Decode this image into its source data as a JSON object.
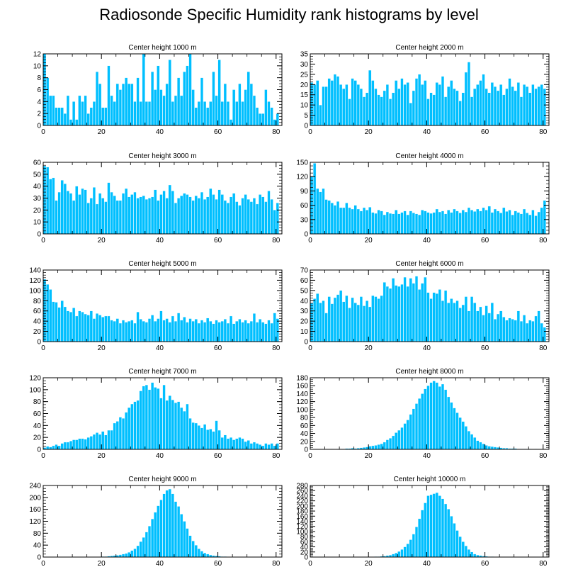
{
  "title": "Radiosonde Specific Humidity rank histograms by level",
  "colors": {
    "bar": "#00BFFF",
    "bar_edge": "#ffffff",
    "axis": "#000000"
  },
  "chart_data": [
    {
      "type": "bar",
      "title": "Center height 1000 m",
      "xlim": [
        0,
        82
      ],
      "ylim": [
        0,
        12
      ],
      "yticks": [
        0,
        2,
        4,
        6,
        8,
        10,
        12
      ],
      "xticks": [
        0,
        20,
        40,
        60,
        80
      ],
      "values": [
        12,
        8,
        5,
        5,
        3,
        3,
        3,
        2,
        5,
        1,
        4,
        1,
        5,
        4,
        5,
        2,
        3,
        4,
        9,
        7,
        3,
        3,
        10,
        5,
        4,
        7,
        6,
        7,
        8,
        7,
        7,
        4,
        8,
        4,
        12,
        4,
        4,
        9,
        6,
        10,
        6,
        5,
        7,
        11,
        4,
        5,
        8,
        5,
        9,
        10,
        12,
        6,
        3,
        4,
        8,
        4,
        3,
        4,
        9,
        5,
        11,
        4,
        7,
        4,
        1,
        6,
        4,
        7,
        4,
        6,
        9,
        7,
        5,
        3,
        2,
        2,
        6,
        4,
        3,
        1,
        2
      ],
      "xlabel": "",
      "ylabel": ""
    },
    {
      "type": "bar",
      "title": "Center height 2000 m",
      "xlim": [
        0,
        82
      ],
      "ylim": [
        0,
        35
      ],
      "yticks": [
        0,
        5,
        10,
        15,
        20,
        25,
        30,
        35
      ],
      "xticks": [
        0,
        20,
        40,
        60,
        80
      ],
      "values": [
        21,
        20,
        22,
        10,
        19,
        19,
        23,
        22,
        25,
        24,
        20,
        18,
        20,
        13,
        23,
        22,
        20,
        18,
        14,
        16,
        27,
        22,
        18,
        15,
        14,
        17,
        20,
        13,
        16,
        22,
        18,
        23,
        20,
        21,
        11,
        17,
        23,
        25,
        20,
        22,
        13,
        16,
        15,
        21,
        20,
        24,
        14,
        19,
        22,
        18,
        17,
        12,
        16,
        26,
        31,
        14,
        18,
        20,
        22,
        25,
        18,
        16,
        21,
        19,
        17,
        20,
        15,
        18,
        23,
        19,
        17,
        21,
        14,
        20,
        19,
        16,
        20,
        18,
        19,
        20,
        18
      ],
      "xlabel": "",
      "ylabel": ""
    },
    {
      "type": "bar",
      "title": "Center height 3000 m",
      "xlim": [
        0,
        82
      ],
      "ylim": [
        0,
        60
      ],
      "yticks": [
        0,
        10,
        20,
        30,
        40,
        50,
        60
      ],
      "xticks": [
        0,
        20,
        40,
        60,
        80
      ],
      "values": [
        57,
        56,
        46,
        47,
        28,
        35,
        45,
        42,
        36,
        34,
        28,
        40,
        33,
        38,
        37,
        26,
        30,
        39,
        25,
        34,
        30,
        27,
        43,
        35,
        32,
        28,
        28,
        34,
        38,
        31,
        33,
        35,
        30,
        31,
        32,
        29,
        30,
        31,
        37,
        28,
        33,
        36,
        30,
        41,
        36,
        26,
        30,
        32,
        34,
        33,
        31,
        28,
        32,
        30,
        35,
        29,
        31,
        38,
        33,
        29,
        37,
        33,
        28,
        26,
        31,
        34,
        27,
        24,
        30,
        33,
        29,
        27,
        30,
        25,
        33,
        31,
        27,
        36,
        29,
        20,
        26
      ],
      "xlabel": "",
      "ylabel": ""
    },
    {
      "type": "bar",
      "title": "Center height 4000 m",
      "xlim": [
        0,
        82
      ],
      "ylim": [
        0,
        150
      ],
      "yticks": [
        0,
        30,
        60,
        90,
        120,
        150
      ],
      "xticks": [
        0,
        20,
        40,
        60,
        80
      ],
      "values": [
        120,
        148,
        95,
        88,
        95,
        72,
        70,
        65,
        60,
        68,
        55,
        55,
        65,
        55,
        52,
        60,
        52,
        48,
        55,
        50,
        56,
        45,
        43,
        50,
        48,
        40,
        46,
        43,
        42,
        50,
        42,
        45,
        48,
        40,
        48,
        44,
        42,
        40,
        50,
        48,
        45,
        43,
        45,
        52,
        46,
        48,
        42,
        50,
        45,
        52,
        48,
        44,
        50,
        46,
        55,
        50,
        47,
        52,
        48,
        55,
        50,
        58,
        45,
        52,
        48,
        44,
        55,
        47,
        50,
        40,
        48,
        45,
        42,
        52,
        44,
        40,
        50,
        38,
        46,
        55,
        70
      ],
      "xlabel": "",
      "ylabel": ""
    },
    {
      "type": "bar",
      "title": "Center height 5000 m",
      "xlim": [
        0,
        82
      ],
      "ylim": [
        0,
        140
      ],
      "yticks": [
        0,
        20,
        40,
        60,
        80,
        100,
        120,
        140
      ],
      "xticks": [
        0,
        20,
        40,
        60,
        80
      ],
      "values": [
        122,
        112,
        102,
        78,
        77,
        67,
        80,
        68,
        60,
        58,
        66,
        50,
        60,
        58,
        54,
        52,
        60,
        45,
        55,
        52,
        48,
        50,
        50,
        42,
        40,
        45,
        36,
        42,
        38,
        40,
        42,
        36,
        58,
        44,
        40,
        38,
        45,
        52,
        40,
        45,
        60,
        42,
        45,
        38,
        50,
        40,
        56,
        42,
        48,
        38,
        45,
        40,
        44,
        36,
        42,
        38,
        46,
        40,
        35,
        42,
        38,
        40,
        44,
        36,
        50,
        35,
        40,
        44,
        38,
        42,
        36,
        40,
        55,
        38,
        44,
        38,
        35,
        42,
        36,
        56,
        45
      ],
      "xlabel": "",
      "ylabel": ""
    },
    {
      "type": "bar",
      "title": "Center height 6000 m",
      "xlim": [
        0,
        82
      ],
      "ylim": [
        0,
        70
      ],
      "yticks": [
        0,
        10,
        20,
        30,
        40,
        50,
        60,
        70
      ],
      "xticks": [
        0,
        20,
        40,
        60,
        80
      ],
      "values": [
        38,
        42,
        47,
        38,
        40,
        28,
        44,
        37,
        43,
        46,
        50,
        39,
        45,
        33,
        43,
        38,
        36,
        44,
        35,
        40,
        34,
        45,
        44,
        42,
        45,
        58,
        54,
        52,
        62,
        55,
        54,
        56,
        63,
        54,
        62,
        57,
        64,
        51,
        57,
        63,
        48,
        42,
        48,
        47,
        51,
        40,
        50,
        38,
        42,
        38,
        40,
        33,
        36,
        44,
        30,
        44,
        38,
        30,
        34,
        26,
        35,
        28,
        38,
        22,
        27,
        30,
        24,
        21,
        23,
        22,
        21,
        30,
        20,
        26,
        18,
        21,
        20,
        25,
        30,
        18,
        14
      ],
      "xlabel": "",
      "ylabel": ""
    },
    {
      "type": "bar",
      "title": "Center height 7000 m",
      "xlim": [
        0,
        82
      ],
      "ylim": [
        0,
        120
      ],
      "yticks": [
        0,
        20,
        40,
        60,
        80,
        100,
        120
      ],
      "xticks": [
        0,
        20,
        40,
        60,
        80
      ],
      "values": [
        3,
        5,
        4,
        6,
        8,
        6,
        10,
        12,
        12,
        14,
        16,
        16,
        18,
        18,
        17,
        20,
        22,
        25,
        28,
        25,
        30,
        24,
        32,
        32,
        44,
        47,
        54,
        52,
        62,
        70,
        76,
        80,
        82,
        98,
        106,
        108,
        100,
        112,
        104,
        102,
        86,
        108,
        82,
        90,
        83,
        78,
        80,
        70,
        64,
        76,
        52,
        45,
        44,
        40,
        36,
        42,
        33,
        34,
        30,
        48,
        32,
        20,
        24,
        18,
        20,
        16,
        18,
        20,
        18,
        13,
        15,
        10,
        12,
        10,
        8,
        6,
        10,
        8,
        10,
        6,
        10
      ],
      "xlabel": "",
      "ylabel": ""
    },
    {
      "type": "bar",
      "title": "Center height 8000 m",
      "xlim": [
        0,
        82
      ],
      "ylim": [
        0,
        180
      ],
      "yticks": [
        0,
        20,
        40,
        60,
        80,
        100,
        120,
        140,
        160,
        180
      ],
      "xticks": [
        0,
        20,
        40,
        60,
        80
      ],
      "values": [
        0,
        0,
        0,
        0,
        0,
        0,
        0,
        1,
        0,
        1,
        1,
        1,
        2,
        2,
        3,
        2,
        3,
        4,
        5,
        6,
        8,
        9,
        10,
        12,
        14,
        18,
        24,
        28,
        34,
        42,
        48,
        55,
        65,
        74,
        88,
        102,
        115,
        128,
        140,
        152,
        160,
        168,
        172,
        168,
        158,
        164,
        150,
        132,
        118,
        104,
        92,
        80,
        70,
        58,
        46,
        38,
        30,
        22,
        18,
        14,
        10,
        8,
        7,
        6,
        5,
        4,
        3,
        3,
        2,
        2,
        2,
        1,
        1,
        1,
        1,
        1,
        0,
        1,
        0,
        0,
        0
      ],
      "xlabel": "",
      "ylabel": ""
    },
    {
      "type": "bar",
      "title": "Center height 9000 m",
      "xlim": [
        0,
        82
      ],
      "ylim": [
        0,
        240
      ],
      "yticks": [
        0,
        40,
        80,
        120,
        160,
        200,
        240
      ],
      "xticks": [
        0,
        20,
        40,
        60,
        80
      ],
      "values": [
        0,
        0,
        0,
        0,
        0,
        0,
        0,
        0,
        0,
        0,
        0,
        0,
        0,
        0,
        0,
        0,
        0,
        1,
        1,
        1,
        2,
        2,
        3,
        4,
        5,
        6,
        8,
        10,
        12,
        16,
        22,
        28,
        38,
        52,
        66,
        84,
        104,
        128,
        150,
        172,
        192,
        212,
        224,
        228,
        212,
        186,
        170,
        144,
        120,
        96,
        72,
        54,
        40,
        28,
        20,
        14,
        10,
        7,
        5,
        4,
        3,
        2,
        2,
        1,
        1,
        1,
        0,
        0,
        0,
        0,
        0,
        0,
        0,
        0,
        0,
        0,
        0,
        0,
        0,
        0,
        0
      ],
      "xlabel": "",
      "ylabel": ""
    },
    {
      "type": "bar",
      "title": "Center height 10000 m",
      "xlim": [
        0,
        82
      ],
      "ylim": [
        0,
        280
      ],
      "yticks": [
        0,
        20,
        40,
        60,
        80,
        100,
        120,
        140,
        160,
        180,
        200,
        220,
        240,
        260,
        280
      ],
      "xticks": [
        0,
        20,
        40,
        60,
        80
      ],
      "values": [
        0,
        0,
        0,
        0,
        0,
        0,
        0,
        0,
        0,
        0,
        0,
        0,
        0,
        0,
        0,
        0,
        0,
        0,
        0,
        0,
        1,
        1,
        2,
        2,
        3,
        4,
        6,
        8,
        12,
        16,
        22,
        30,
        40,
        52,
        68,
        90,
        118,
        150,
        184,
        212,
        240,
        244,
        248,
        252,
        240,
        228,
        208,
        188,
        160,
        132,
        104,
        80,
        60,
        44,
        30,
        20,
        12,
        8,
        6,
        4,
        3,
        2,
        2,
        1,
        1,
        1,
        0,
        0,
        0,
        0,
        0,
        0,
        0,
        0,
        0,
        0,
        0,
        0,
        0,
        0,
        0
      ],
      "xlabel": "",
      "ylabel": ""
    }
  ]
}
